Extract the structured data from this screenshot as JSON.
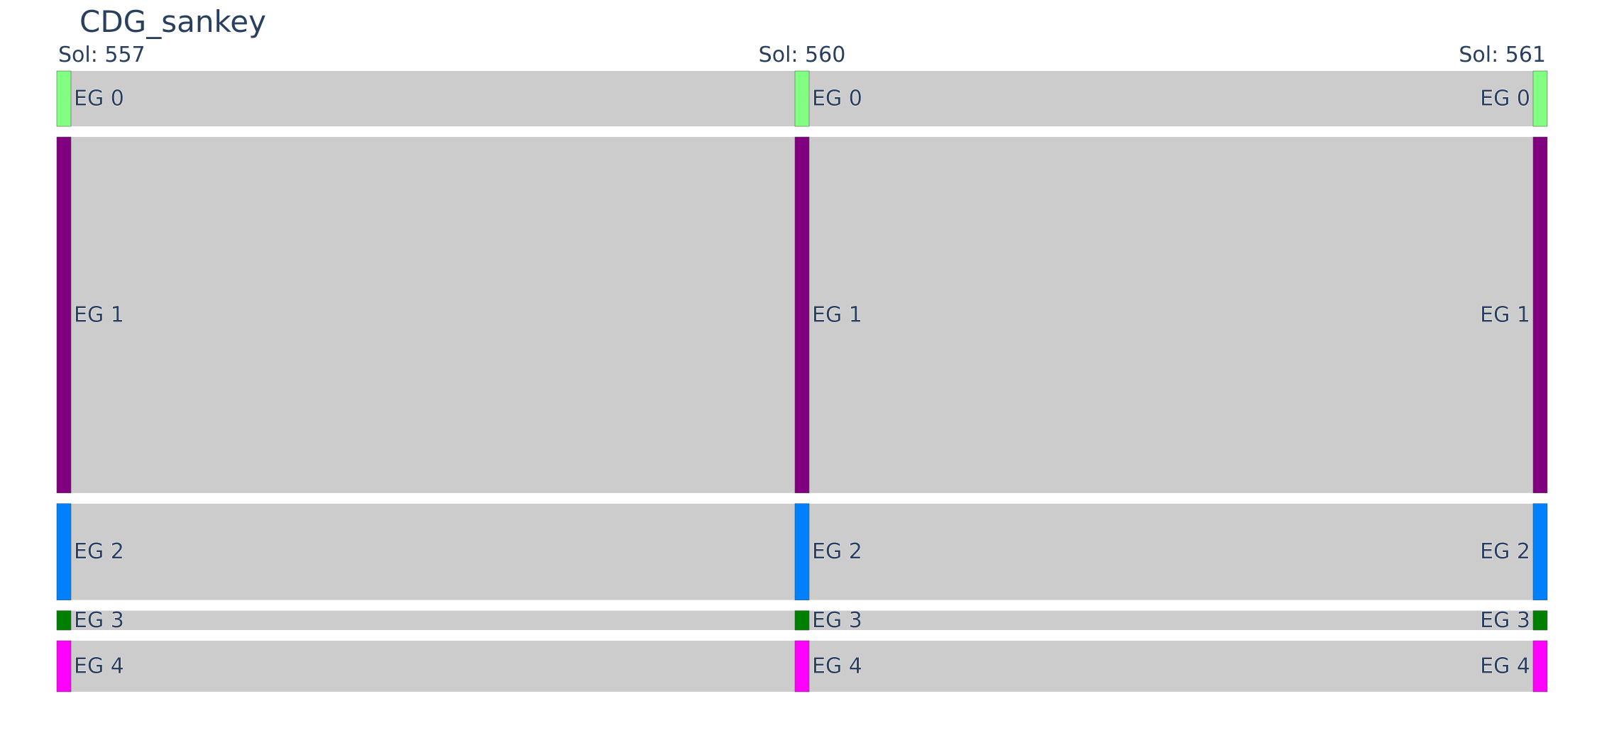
{
  "chart_data": {
    "type": "sankey",
    "title": "CDG_sankey",
    "columns": [
      {
        "label": "Sol: 557"
      },
      {
        "label": "Sol: 560"
      },
      {
        "label": "Sol: 561"
      }
    ],
    "nodes": [
      {
        "name": "EG 0",
        "color": "#80ff80"
      },
      {
        "name": "EG 1",
        "color": "#800080"
      },
      {
        "name": "EG 2",
        "color": "#0080ff"
      },
      {
        "name": "EG 3",
        "color": "#008000"
      },
      {
        "name": "EG 4",
        "color": "#ff00ff"
      }
    ],
    "node_values": [
      7.7,
      49.5,
      13.4,
      2.7,
      7.1
    ],
    "links": [
      {
        "from_column": 0,
        "to_column": 1,
        "node": "EG 0",
        "value": 7.7
      },
      {
        "from_column": 0,
        "to_column": 1,
        "node": "EG 1",
        "value": 49.5
      },
      {
        "from_column": 0,
        "to_column": 1,
        "node": "EG 2",
        "value": 13.4
      },
      {
        "from_column": 0,
        "to_column": 1,
        "node": "EG 3",
        "value": 2.7
      },
      {
        "from_column": 0,
        "to_column": 1,
        "node": "EG 4",
        "value": 7.1
      },
      {
        "from_column": 1,
        "to_column": 2,
        "node": "EG 0",
        "value": 7.7
      },
      {
        "from_column": 1,
        "to_column": 2,
        "node": "EG 1",
        "value": 49.5
      },
      {
        "from_column": 1,
        "to_column": 2,
        "node": "EG 2",
        "value": 13.4
      },
      {
        "from_column": 1,
        "to_column": 2,
        "node": "EG 3",
        "value": 2.7
      },
      {
        "from_column": 1,
        "to_column": 2,
        "node": "EG 4",
        "value": 7.1
      }
    ],
    "link_color": "#cccccc",
    "text_color": "#2a3f5f"
  }
}
